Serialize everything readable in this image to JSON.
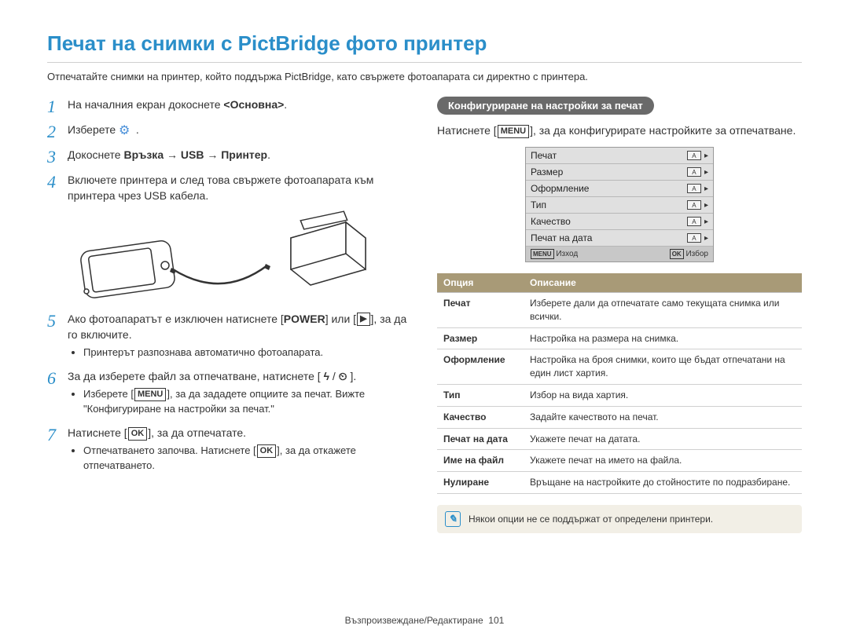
{
  "title": "Печат на снимки c PictBridge фото принтер",
  "intro": "Отпечатайте снимки на принтер, който поддържа PictBridge, като свържете фотоапарата си директно с принтера.",
  "steps": {
    "s1": {
      "num": "1",
      "prefix": "На началния екран докоснете ",
      "bold": "<Основна>",
      "suffix": "."
    },
    "s2": {
      "num": "2",
      "text": "Изберете "
    },
    "s3": {
      "num": "3",
      "prefix": "Докоснете ",
      "bold": "Връзка → USB → Принтер",
      "suffix": "."
    },
    "s4": {
      "num": "4",
      "text": "Включете принтера и след това свържете фотоапарата към принтера чрез USB кабела."
    },
    "s5": {
      "num": "5",
      "prefix": "Ако фотоапаратът е изключен натиснете [",
      "key": "POWER",
      "mid": "] или [",
      "suffix": "], за да го включите.",
      "bullet": "Принтерът разпознава автоматично фотоапарата."
    },
    "s6": {
      "num": "6",
      "text": "За да изберете файл за отпечатване, натиснете [ ",
      "suffix": " ].",
      "b_prefix": "Изберете [",
      "b_key": "MENU",
      "b_suffix": "], за да зададете опциите за печат. Вижте \"Конфигуриране на настройки за печат.\""
    },
    "s7": {
      "num": "7",
      "prefix": "Натиснете [",
      "key": "OK",
      "suffix": "], за да отпечатате.",
      "b_prefix": "Отпечатването започва. Натиснете [",
      "b_key": "OK",
      "b_suffix": "], за да откажете отпечатването."
    }
  },
  "right": {
    "section_tab": "Конфигуриране на настройки за печат",
    "intro_prefix": "Натиснете [",
    "intro_key": "MENU",
    "intro_suffix": "], за да конфигурирате настройките за отпечатване."
  },
  "lcd": {
    "rows": [
      {
        "label": "Печат",
        "ind": "A"
      },
      {
        "label": "Размер",
        "ind": "A"
      },
      {
        "label": "Оформление",
        "ind": "A"
      },
      {
        "label": "Тип",
        "ind": "A"
      },
      {
        "label": "Качество",
        "ind": "A"
      },
      {
        "label": "Печат на дата",
        "ind": "A"
      }
    ],
    "menu_btn": "MENU",
    "menu_label": "Изход",
    "ok_btn": "OK",
    "ok_label": "Избор"
  },
  "table": {
    "header_color": "#a89a77",
    "col_option": "Опция",
    "col_desc": "Описание",
    "rows": [
      {
        "opt": "Печат",
        "desc": "Изберете дали да отпечатате само текущата снимка или всички."
      },
      {
        "opt": "Размер",
        "desc": "Настройка на размера на снимка."
      },
      {
        "opt": "Оформление",
        "desc": "Настройка на броя снимки, които ще бъдат отпечатани на един лист хартия."
      },
      {
        "opt": "Тип",
        "desc": "Избор на вида хартия."
      },
      {
        "opt": "Качество",
        "desc": "Задайте качеството на печат."
      },
      {
        "opt": "Печат на дата",
        "desc": "Укажете печат на датата."
      },
      {
        "opt": "Име на файл",
        "desc": "Укажете печат на името на файла."
      },
      {
        "opt": "Нулиране",
        "desc": "Връщане на настройките до стойностите по подразбиране."
      }
    ]
  },
  "note": "Някои опции не се поддържат от определени принтери.",
  "footer": {
    "section": "Възпроизвеждане/Редактиране",
    "page": "101"
  }
}
